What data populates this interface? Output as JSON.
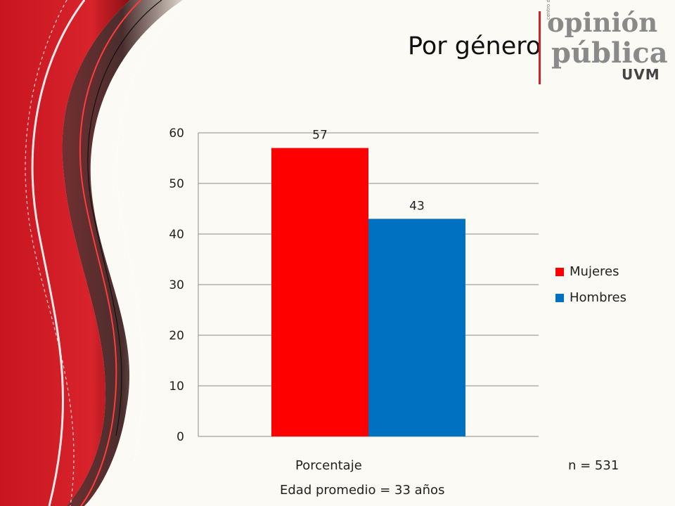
{
  "title": "Por género",
  "logo": {
    "line1": "opinión",
    "line2": "pública",
    "line3": "UVM",
    "small": "centro de"
  },
  "chart_data": {
    "type": "bar",
    "categories": [
      "Porcentaje"
    ],
    "series": [
      {
        "name": "Mujeres",
        "values": [
          57
        ],
        "color": "#ff0000"
      },
      {
        "name": "Hombres",
        "values": [
          43
        ],
        "color": "#0070c0"
      }
    ],
    "ylim": [
      0,
      60
    ],
    "yticks": [
      0,
      10,
      20,
      30,
      40,
      50,
      60
    ],
    "grid": true,
    "legend": "right"
  },
  "sample_label": "n = 531",
  "footnote": "Edad promedio = 33 años"
}
